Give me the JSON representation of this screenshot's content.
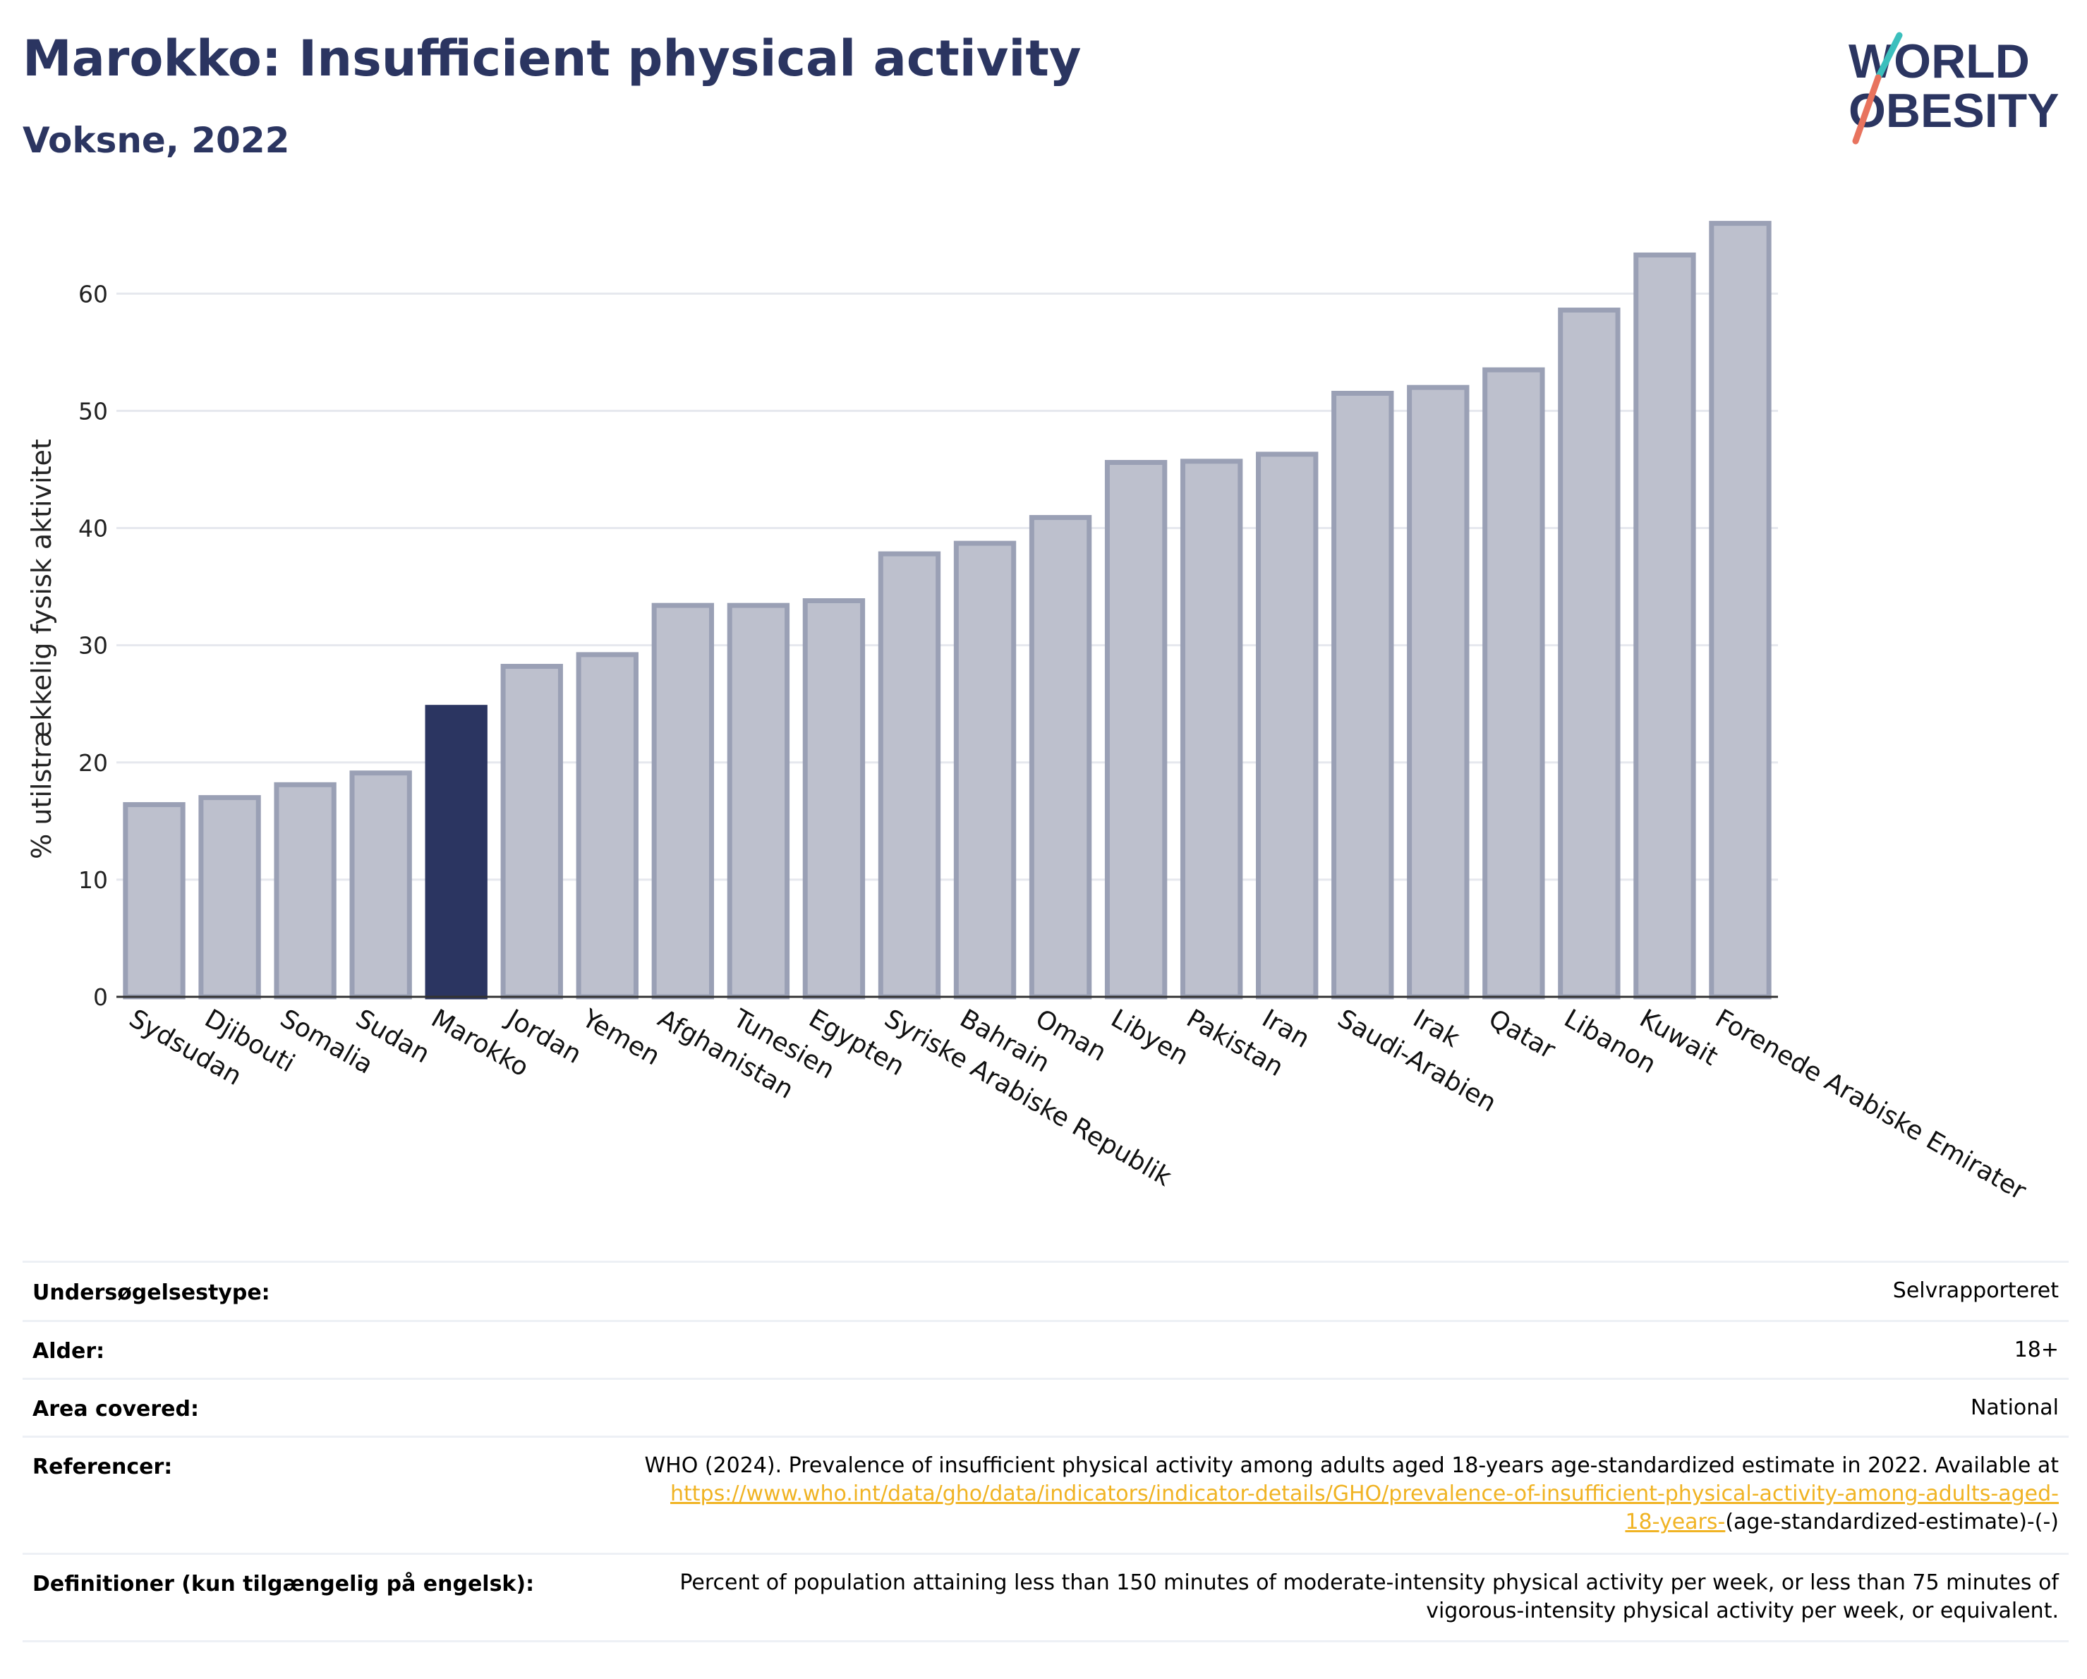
{
  "title": "Marokko: Insufficient physical activity",
  "subtitle": "Voksne, 2022",
  "logo": {
    "line1": "WORLD",
    "line2": "OBESITY"
  },
  "colors": {
    "highlight": "#2b3561",
    "bar": "#bdc0cd",
    "bar_edge": "#9aa0b5",
    "title": "#2b3561",
    "link": "#f0b323"
  },
  "chart_data": {
    "type": "bar",
    "ylabel": "% utilstrækkelig fysisk aktivitet",
    "ylim": [
      0,
      67
    ],
    "yticks": [
      0,
      10,
      20,
      30,
      40,
      50,
      60
    ],
    "grid": true,
    "highlight": "Marokko",
    "categories": [
      "Sydsudan",
      "Djibouti",
      "Somalia",
      "Sudan",
      "Marokko",
      "Jordan",
      "Yemen",
      "Afghanistan",
      "Tunesien",
      "Egypten",
      "Syriske Arabiske Republik",
      "Bahrain",
      "Oman",
      "Libyen",
      "Pakistan",
      "Iran",
      "Saudi-Arabien",
      "Irak",
      "Qatar",
      "Libanon",
      "Kuwait",
      "Forenede Arabiske Emirater"
    ],
    "values": [
      16.4,
      17.0,
      18.1,
      19.1,
      24.7,
      28.2,
      29.2,
      33.4,
      33.4,
      33.8,
      37.8,
      38.7,
      40.9,
      45.6,
      45.7,
      46.3,
      51.5,
      52.0,
      53.5,
      58.6,
      63.3,
      66.0
    ]
  },
  "info": [
    {
      "key": "Undersøgelsestype:",
      "value": "Selvrapporteret"
    },
    {
      "key": "Alder:",
      "value": "18+"
    },
    {
      "key": "Area covered:",
      "value": "National"
    },
    {
      "key": "Referencer:",
      "value_pre": "WHO (2024). Prevalence of insufficient physical activity among adults aged 18-years age-standardized estimate in 2022. Available at",
      "link_part1": "https://www.who.int/data/gho/data/indicators/indicator-details/GHO/prevalence-of-insufficient-physical-activity-among-adults-aged-",
      "link_part2": "18-years-",
      "value_post": "(age-standardized-estimate)-(-)"
    },
    {
      "key": "Definitioner (kun tilgængelig på engelsk):",
      "value_line1": "Percent of population attaining less than 150 minutes of moderate-intensity physical activity per week, or less than 75 minutes of",
      "value_line2": "vigorous-intensity physical activity per week, or equivalent."
    }
  ]
}
